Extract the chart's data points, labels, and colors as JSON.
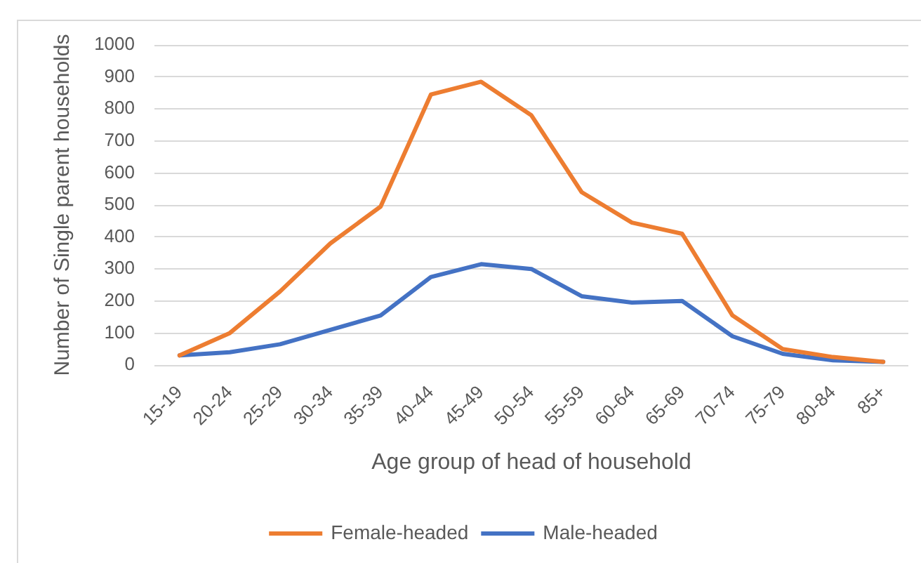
{
  "chart_data": {
    "type": "line",
    "xlabel": "Age group of head of household",
    "ylabel": "Number of Single parent households",
    "categories": [
      "15-19",
      "20-24",
      "25-29",
      "30-34",
      "35-39",
      "40-44",
      "45-49",
      "50-54",
      "55-59",
      "60-64",
      "65-69",
      "70-74",
      "75-79",
      "80-84",
      "85+"
    ],
    "series": [
      {
        "name": "Female-headed",
        "color": "#ed7d31",
        "values": [
          30,
          100,
          230,
          380,
          495,
          845,
          885,
          780,
          540,
          445,
          410,
          155,
          50,
          25,
          10
        ]
      },
      {
        "name": "Male-headed",
        "color": "#4472c4",
        "values": [
          30,
          40,
          65,
          110,
          155,
          275,
          315,
          300,
          215,
          195,
          200,
          90,
          35,
          15,
          10
        ]
      }
    ],
    "ylim": [
      0,
      1000
    ],
    "yticks": [
      0,
      100,
      200,
      300,
      400,
      500,
      600,
      700,
      800,
      900,
      1000
    ],
    "grid": "y",
    "legend": "bottom",
    "marker": "none",
    "line_style": "solid"
  }
}
